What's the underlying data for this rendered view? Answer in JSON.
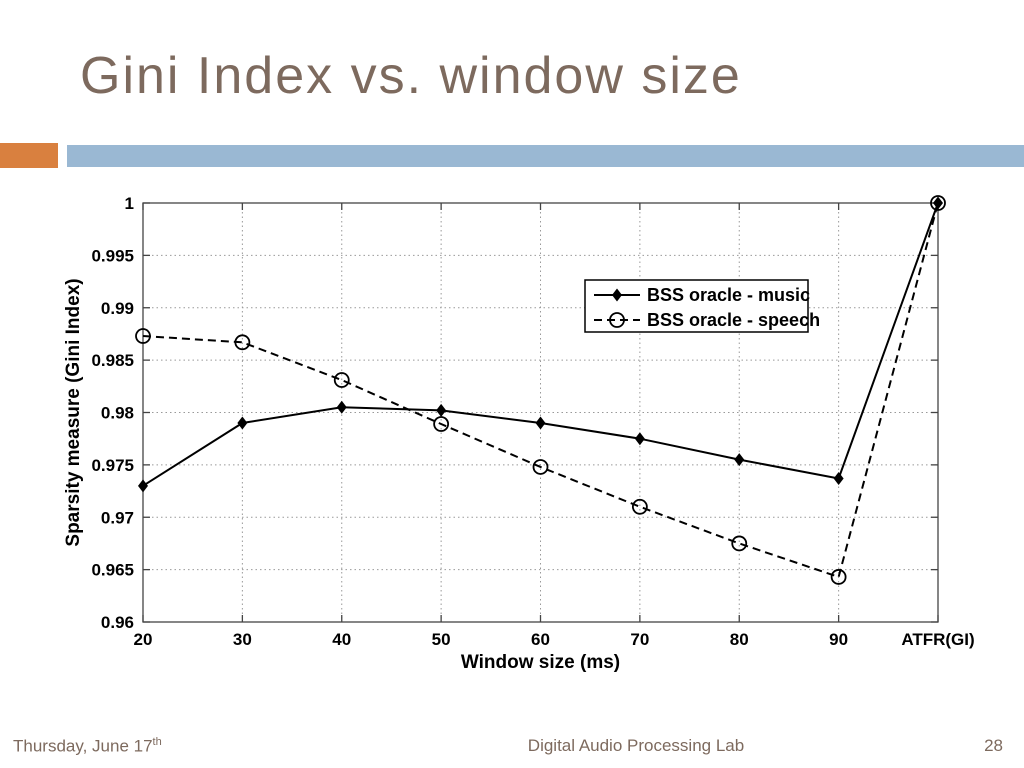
{
  "slide": {
    "title": "Gini Index vs. window size",
    "footer": {
      "date_main": "Thursday, June 17",
      "date_sup": "th",
      "center_text": "Digital Audio Processing Lab",
      "page_number": "28"
    },
    "colors": {
      "title_text": "#7d6a5e",
      "accent_orange": "#d9803f",
      "accent_blue": "#9ab8d3",
      "footer_text": "#7d6a5e",
      "chart_line": "#000000",
      "chart_box": "#444444",
      "grid": "#999999"
    }
  },
  "chart_data": {
    "type": "line",
    "title": "",
    "xlabel": "Window size (ms)",
    "ylabel": "Sparsity measure (Gini Index)",
    "x_tick_labels": [
      "20",
      "30",
      "40",
      "50",
      "60",
      "70",
      "80",
      "90",
      "ATFR(GI)"
    ],
    "y_ticks": [
      1,
      0.995,
      0.99,
      0.985,
      0.98,
      0.975,
      0.97,
      0.965,
      0.96
    ],
    "y_tick_labels": [
      "1",
      "0.995",
      "0.99",
      "0.985",
      "0.98",
      "0.975",
      "0.97",
      "0.965",
      "0.96"
    ],
    "ylim": [
      0.96,
      1
    ],
    "grid": "dotted",
    "legend_position": "upper-right-inside",
    "series": [
      {
        "name": "BSS oracle - music",
        "line_style": "solid",
        "marker": "filled-diamond",
        "color": "#000000",
        "values": [
          0.973,
          0.979,
          0.9805,
          0.9802,
          0.979,
          0.9775,
          0.9755,
          0.9737,
          1.0
        ]
      },
      {
        "name": "BSS oracle - speech",
        "line_style": "dashed",
        "marker": "open-circle",
        "color": "#000000",
        "values": [
          0.9873,
          0.9867,
          0.9831,
          0.9789,
          0.9748,
          0.971,
          0.9675,
          0.9643,
          1.0
        ]
      }
    ]
  }
}
